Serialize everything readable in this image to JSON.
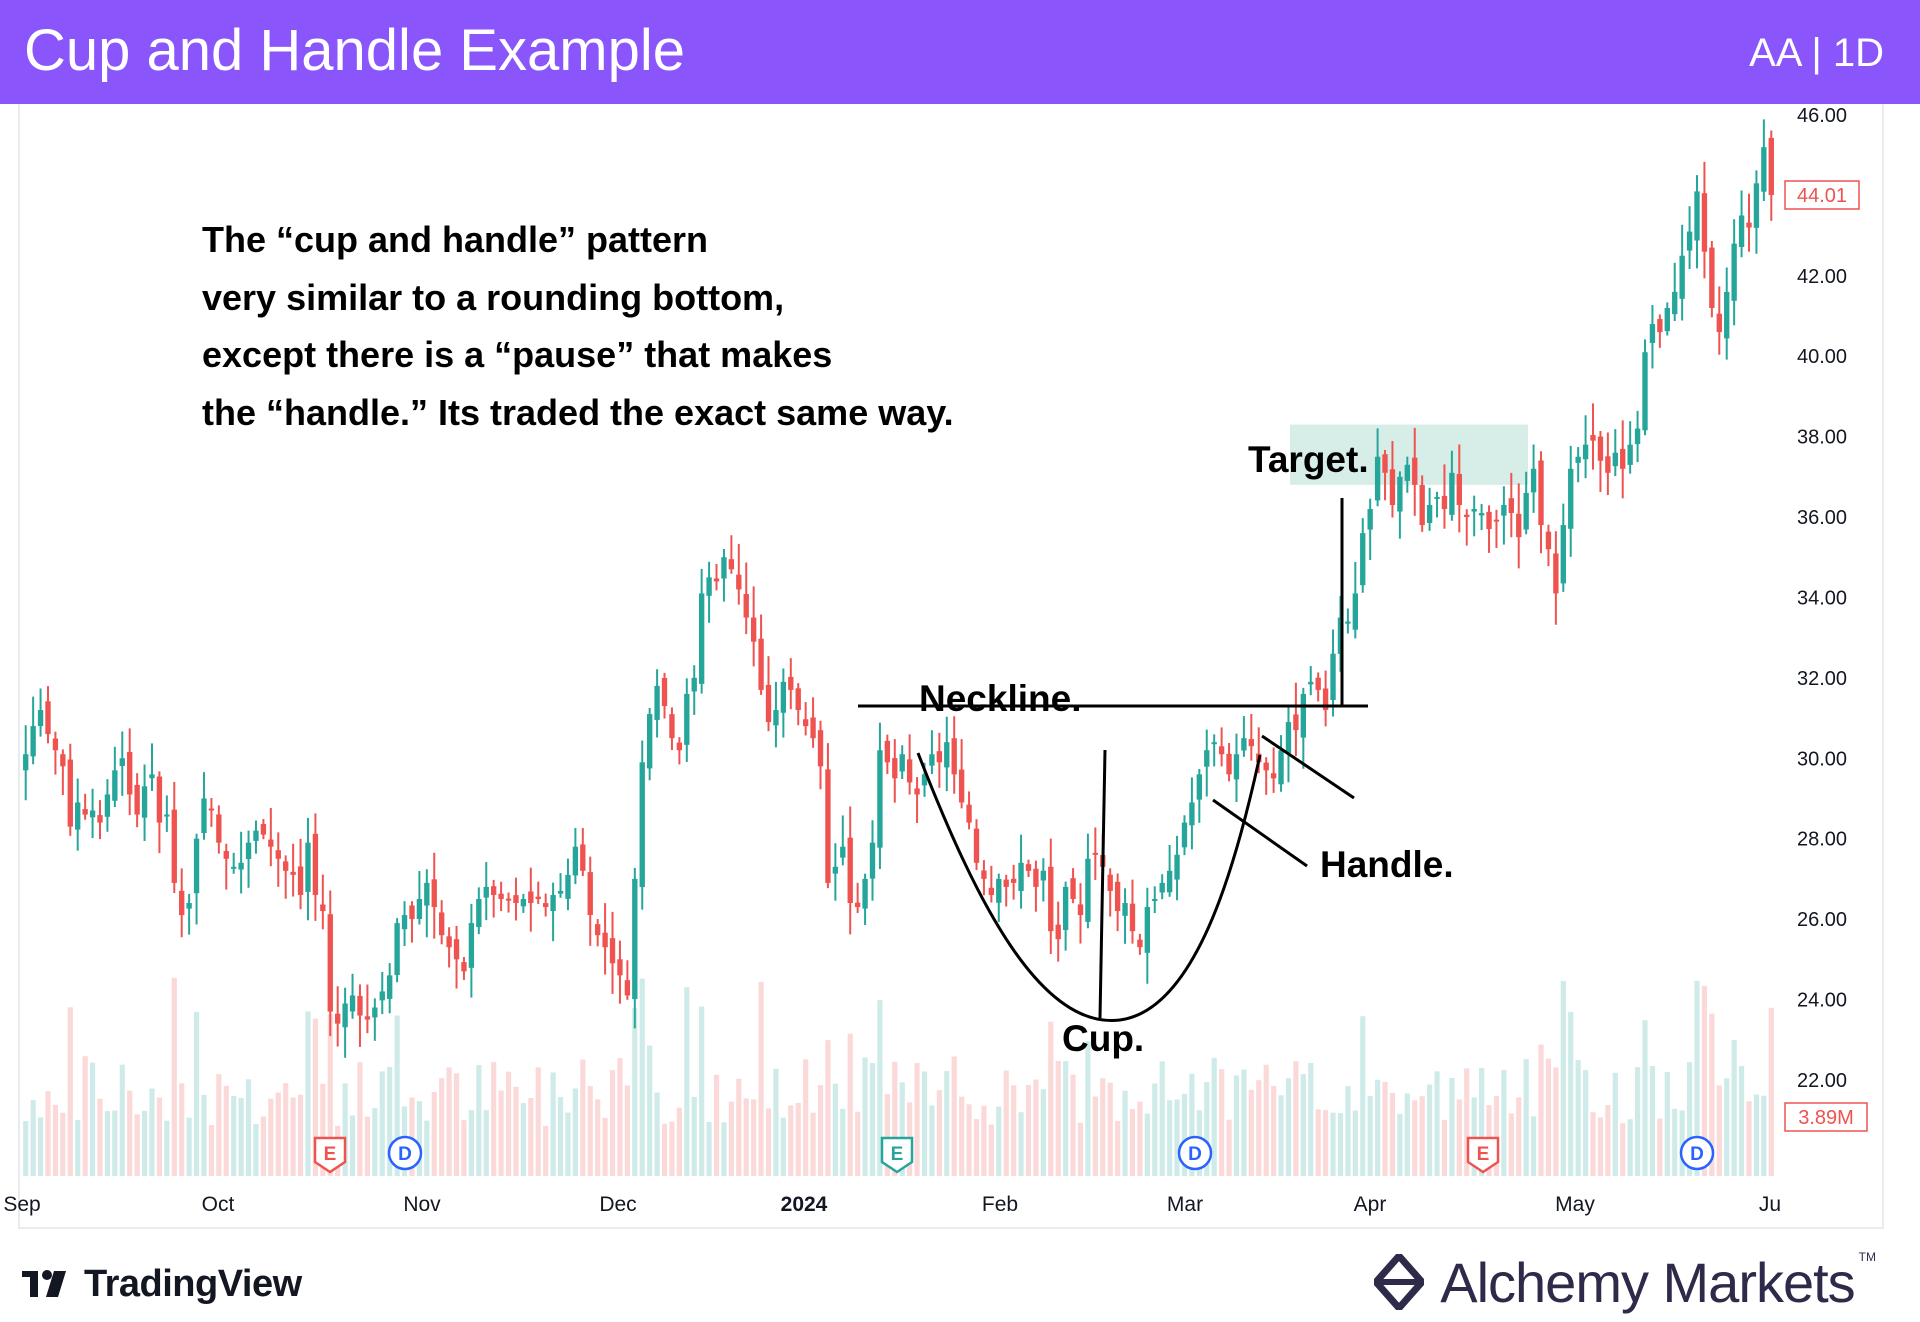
{
  "header": {
    "title": "Cup and Handle Example",
    "ticker": "AA | 1D",
    "background": "#8a55fb"
  },
  "annotations": {
    "description": [
      "The “cup and handle” pattern",
      "very similar to a rounding bottom,",
      "except there is a “pause” that makes",
      "the “handle.” Its traded the exact same way."
    ],
    "neckline": "Neckline.",
    "cup": "Cup.",
    "handle": "Handle.",
    "target": "Target."
  },
  "chart_data": {
    "type": "candlestick",
    "symbol": "AA",
    "interval": "1D",
    "x_ticks": [
      "Sep",
      "Oct",
      "Nov",
      "Dec",
      "2024",
      "Feb",
      "Mar",
      "Apr",
      "May",
      "Ju"
    ],
    "y_ticks": [
      "46.00",
      "44.01",
      "42.00",
      "40.00",
      "38.00",
      "36.00",
      "34.00",
      "32.00",
      "30.00",
      "28.00",
      "26.00",
      "24.00",
      "22.00"
    ],
    "ylim": [
      21.5,
      46.0
    ],
    "last_price": "44.01",
    "last_volume": "3.89M",
    "neckline_price": 31.3,
    "target_zone": [
      36.8,
      38.3
    ],
    "events": [
      {
        "type": "E",
        "month": "Oct"
      },
      {
        "type": "D",
        "month": "Nov"
      },
      {
        "type": "E",
        "month": "Jan"
      },
      {
        "type": "D",
        "month": "Mar"
      },
      {
        "type": "E",
        "month": "Apr"
      },
      {
        "type": "D",
        "month": "May"
      }
    ],
    "closes": [
      30.1,
      30.8,
      31.2,
      30.6,
      30.2,
      29.8,
      28.3,
      28.9,
      28.6,
      28.7,
      28.4,
      29.1,
      29.7,
      30.0,
      29.1,
      28.6,
      29.3,
      29.6,
      28.4,
      28.6,
      26.9,
      26.1,
      26.4,
      28.0,
      29.0,
      28.7,
      27.9,
      27.5,
      27.3,
      27.4,
      27.9,
      28.2,
      28.1,
      27.8,
      27.5,
      27.2,
      27.1,
      26.6,
      27.9,
      26.6,
      26.2,
      23.7,
      23.4,
      23.9,
      24.1,
      23.6,
      23.5,
      23.8,
      24.2,
      24.6,
      25.9,
      26.1,
      26.0,
      26.5,
      26.9,
      26.3,
      25.6,
      25.3,
      25.0,
      24.7,
      25.9,
      26.5,
      26.8,
      26.6,
      26.5,
      26.5,
      26.4,
      26.5,
      26.4,
      26.5,
      26.3,
      26.6,
      26.7,
      27.1,
      27.8,
      27.2,
      26.1,
      25.6,
      25.3,
      24.9,
      24.6,
      24.1,
      27.0,
      29.9,
      31.1,
      31.8,
      31.3,
      30.5,
      30.2,
      31.6,
      32.0,
      34.1,
      34.5,
      34.4,
      35.0,
      34.7,
      34.2,
      33.5,
      32.9,
      31.7,
      30.9,
      31.2,
      31.9,
      31.7,
      31.2,
      30.8,
      30.5,
      29.8,
      26.9,
      27.3,
      27.8,
      26.4,
      26.3,
      27.0,
      27.9,
      30.2,
      29.9,
      29.5,
      30.1,
      29.4,
      29.1,
      29.6,
      30.1,
      29.9,
      30.4,
      29.6,
      28.9,
      28.4,
      27.4,
      27.0,
      26.6,
      27.0,
      26.8,
      26.9,
      27.4,
      27.2,
      26.8,
      27.2,
      25.7,
      25.5,
      26.8,
      26.5,
      26.1,
      27.5,
      27.6,
      27.3,
      26.7,
      26.2,
      26.4,
      25.7,
      25.3,
      26.3,
      26.5,
      26.9,
      27.2,
      27.6,
      28.4,
      28.9,
      29.6,
      30.2,
      30.4,
      30.1,
      29.6,
      30.1,
      30.5,
      30.3,
      29.9,
      29.7,
      29.5,
      30.2,
      30.9,
      30.7,
      31.6,
      31.9,
      31.7,
      31.2,
      32.6,
      33.5,
      33.4,
      34.1,
      35.6,
      36.2,
      37.5,
      37.1,
      36.3,
      37.0,
      37.3,
      36.8,
      35.8,
      36.3,
      36.5,
      36.2,
      37.1,
      36.3,
      36.0,
      36.2,
      36.1,
      35.7,
      35.9,
      36.3,
      36.1,
      35.5,
      36.6,
      37.2,
      35.8,
      35.2,
      34.1,
      35.8,
      37.2,
      37.5,
      37.8,
      37.9,
      37.4,
      37.1,
      37.6,
      37.2,
      37.8,
      38.2,
      40.1,
      40.8,
      40.6,
      41.2,
      41.6,
      42.5,
      43.1,
      44.1,
      42.6,
      41.2,
      40.6,
      41.6,
      42.8,
      43.5,
      43.2,
      44.3,
      45.2,
      44.01
    ]
  }
}
